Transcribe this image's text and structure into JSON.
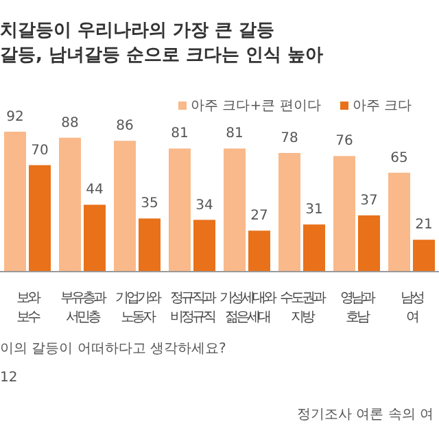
{
  "chart_data": {
    "type": "bar",
    "title": "치갈등이 우리나라의 가장 큰 갈등",
    "subtitle": "갈등, 남녀갈등 순으로 크다는 인식 높아",
    "tick_labels": "x",
    "categories": [
      "보와\n보수",
      "부유층과\n서민층",
      "기업가와\n노동자",
      "정규직과\n비정규직",
      "기성세대와\n젊은세대",
      "수도권과\n지방",
      "영남과\n호남",
      "남성\n여"
    ],
    "series": [
      {
        "name": "아주 크다+큰 편이다",
        "color": "#f9b98a",
        "values": [
          92,
          88,
          86,
          81,
          81,
          78,
          76,
          65
        ]
      },
      {
        "name": "아주 크다",
        "color": "#e8711a",
        "values": [
          70,
          44,
          35,
          34,
          27,
          31,
          37,
          21
        ]
      }
    ],
    "data_labels": true,
    "legend": "top right",
    "annotations": [
      "이의 갈등이 어떠하다고 생각하세요?",
      "12",
      "정기조사 여론 속의 여"
    ]
  }
}
